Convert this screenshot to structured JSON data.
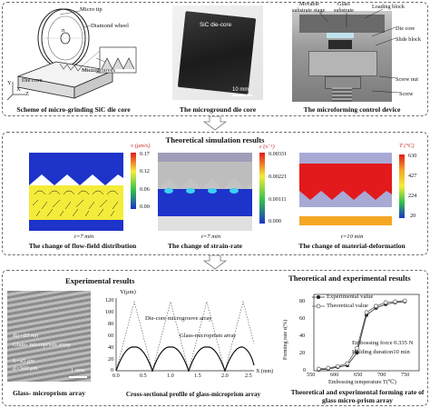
{
  "top": {
    "fig1": {
      "caption": "Scheme of micro-grinding SiC die core",
      "labels": {
        "micro_tip": "Micro tip",
        "diamond_wheel": "Diamond wheel",
        "die_core": "Die core",
        "microgrooves": "Microgrooves",
        "n": "n",
        "x": "X",
        "y": "Y",
        "z": "Z"
      }
    },
    "fig2": {
      "caption": "The microground die core",
      "label": "SiC die-core",
      "scale": "10 mm"
    },
    "fig3": {
      "caption": "The microforming control device",
      "labels": {
        "movable": "Movable",
        "substrate_stage": "substrate stage",
        "glass": "Glass",
        "substrate": "substrate",
        "loading_block": "Loading block",
        "die_core": "Die core",
        "slide_block": "Slide block",
        "screw_nut": "Screw nut",
        "screw": "Screw"
      }
    }
  },
  "middle": {
    "title": "Theoretical simulation results",
    "sim1": {
      "caption": "The change of flow-field distribution",
      "time": "t=7 min",
      "unit": "v (μm/s)",
      "scale": [
        "0.17",
        "0.12",
        "0.06",
        "0.00"
      ]
    },
    "sim2": {
      "caption": "The change of strain-rate",
      "time": "t=7 min",
      "unit": "ε̇ (s⁻¹)",
      "scale": [
        "0.00331",
        "0.00221",
        "0.00111",
        "0.000"
      ]
    },
    "sim3": {
      "caption": "The change of material-deformation",
      "time": "t=10 min",
      "unit": "T (°C)",
      "scale": [
        "630",
        "427",
        "224",
        "20"
      ]
    }
  },
  "bottom": {
    "exp_title": "Experimental results",
    "theo_title": "Theoretical and experimental results",
    "photo": {
      "caption": "Glass- microprism array",
      "ra": "Ra=85 nm",
      "label": "Glass- microprism array",
      "h": "h=45 μm",
      "d": "d=500 μm",
      "scale": "1 mm"
    },
    "profile": {
      "caption": "Cross-sectional profile of glass-microprism array",
      "ylabel": "Y(μm)",
      "xlabel": "X (mm)",
      "yticks": [
        "120",
        "100",
        "80",
        "60",
        "40",
        "20",
        "0"
      ],
      "xticks": [
        "0.0",
        "0.5",
        "1.0",
        "1.5",
        "2.0",
        "2.5"
      ],
      "legend1": "Die-core microgroove array",
      "legend2": "Glass-microprism array"
    }
  },
  "chart_data": {
    "type": "line",
    "xlabel": "Embossing temperature T(℃)",
    "ylabel": "Forming rate ε(%)",
    "x": [
      550,
      570,
      590,
      610,
      630,
      650,
      670,
      690,
      710,
      730
    ],
    "xticks": [
      "550",
      "600",
      "650",
      "700",
      "750"
    ],
    "yticks": [
      "0",
      "20",
      "40",
      "60",
      "80"
    ],
    "xlim": [
      540,
      760
    ],
    "ylim": [
      0,
      85
    ],
    "series": [
      {
        "name": "Experimental value",
        "marker": "filled-circle",
        "color": "#222222",
        "values": [
          1,
          2,
          4,
          6,
          20,
          62,
          70,
          74,
          76,
          77
        ]
      },
      {
        "name": "Theoretical value",
        "marker": "open-circle",
        "color": "#555555",
        "values": [
          2,
          3,
          5,
          8,
          25,
          65,
          72,
          76,
          77,
          78
        ]
      }
    ],
    "annotations": [
      "Embossing force 0.335 N",
      "Holding duration10 min"
    ],
    "caption_line1": "Theoretical and experimental forming rate of",
    "caption_line2": "glass micro-prism array"
  }
}
